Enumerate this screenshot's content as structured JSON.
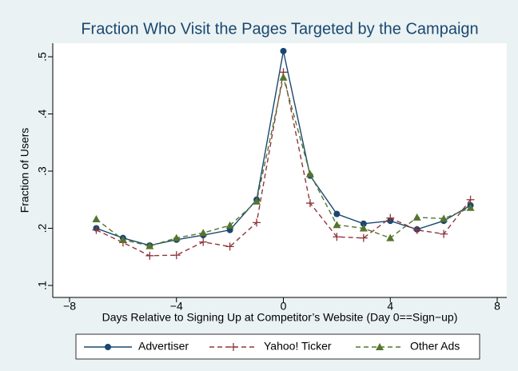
{
  "chart_data": {
    "type": "line",
    "title": "Fraction Who Visit the Pages Targeted by the Campaign",
    "x_label": "Days Relative to Signing Up at Competitor’s Website (Day 0==Sign−up)",
    "y_label": "Fraction of Users",
    "x": [
      -7,
      -6,
      -5,
      -4,
      -3,
      -2,
      -1,
      0,
      1,
      2,
      3,
      4,
      5,
      6,
      7
    ],
    "series": [
      {
        "name": "Advertiser",
        "color": "#1a476f",
        "marker": "circle",
        "dash": false,
        "values": [
          0.2,
          0.183,
          0.17,
          0.18,
          0.188,
          0.197,
          0.25,
          0.51,
          0.292,
          0.225,
          0.208,
          0.213,
          0.198,
          0.213,
          0.24
        ]
      },
      {
        "name": "Yahoo! Ticker",
        "color": "#90353b",
        "marker": "plus",
        "dash": true,
        "values": [
          0.197,
          0.175,
          0.152,
          0.153,
          0.176,
          0.168,
          0.21,
          0.473,
          0.244,
          0.185,
          0.183,
          0.218,
          0.197,
          0.19,
          0.25
        ]
      },
      {
        "name": "Other Ads",
        "color": "#55752f",
        "marker": "triangle",
        "dash": true,
        "values": [
          0.216,
          0.18,
          0.169,
          0.183,
          0.192,
          0.205,
          0.247,
          0.464,
          0.295,
          0.206,
          0.2,
          0.183,
          0.219,
          0.217,
          0.236
        ]
      }
    ],
    "xlim": [
      -8,
      8
    ],
    "xticks": [
      {
        "value": -8,
        "label": "−8"
      },
      {
        "value": -4,
        "label": "−4"
      },
      0,
      4,
      8
    ],
    "ylim": [
      0.1,
      0.5
    ],
    "yticks": [
      {
        "value": 0.1,
        "label": ".1"
      },
      {
        "value": 0.2,
        "label": ".2"
      },
      {
        "value": 0.3,
        "label": ".3"
      },
      {
        "value": 0.4,
        "label": ".4"
      },
      {
        "value": 0.5,
        "label": ".5"
      }
    ],
    "grid": false,
    "legend": "bottom"
  }
}
